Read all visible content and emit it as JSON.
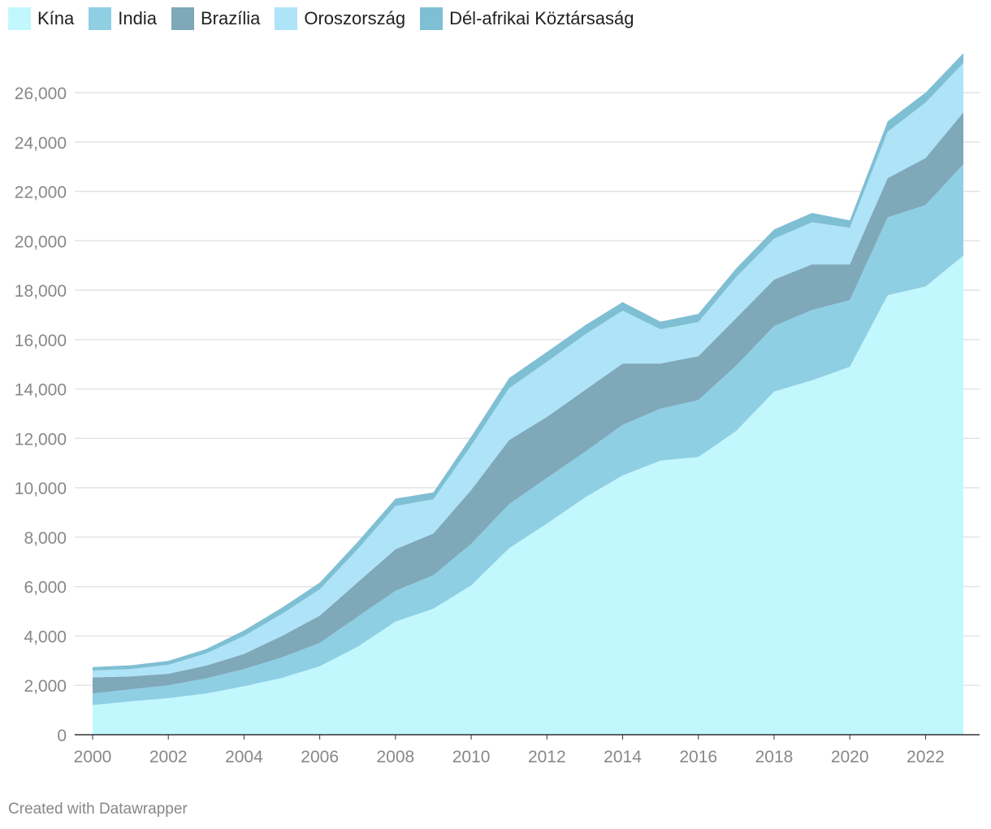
{
  "footer": {
    "credit": "Created with Datawrapper"
  },
  "chart_data": {
    "type": "area",
    "stacked": true,
    "title": "",
    "xlabel": "",
    "ylabel": "",
    "x": [
      2000,
      2001,
      2002,
      2003,
      2004,
      2005,
      2006,
      2007,
      2008,
      2009,
      2010,
      2011,
      2012,
      2013,
      2014,
      2015,
      2016,
      2017,
      2018,
      2019,
      2020,
      2021,
      2022,
      2023
    ],
    "xticks": [
      "2000",
      "2002",
      "2004",
      "2006",
      "2008",
      "2010",
      "2012",
      "2014",
      "2016",
      "2018",
      "2020",
      "2022"
    ],
    "yticks": [
      "0",
      "2,000",
      "4,000",
      "6,000",
      "8,000",
      "10,000",
      "12,000",
      "14,000",
      "16,000",
      "18,000",
      "20,000",
      "22,000",
      "24,000",
      "26,000"
    ],
    "ylim": [
      0,
      28000
    ],
    "grid": true,
    "legend_position": "top-left",
    "series": [
      {
        "name": "Kína",
        "color": "#c2f7fd",
        "values": [
          1200,
          1350,
          1480,
          1670,
          1960,
          2300,
          2770,
          3560,
          4580,
          5100,
          6050,
          7550,
          8550,
          9600,
          10500,
          11100,
          11250,
          12300,
          13900,
          14350,
          14900,
          17800,
          18150,
          19400
        ]
      },
      {
        "name": "India",
        "color": "#8ecfe4",
        "values": [
          470,
          490,
          520,
          610,
          700,
          830,
          950,
          1220,
          1250,
          1360,
          1680,
          1790,
          1850,
          1850,
          2050,
          2100,
          2300,
          2650,
          2650,
          2850,
          2700,
          3150,
          3300,
          3700
        ]
      },
      {
        "name": "Brazília",
        "color": "#7fa8b9",
        "values": [
          650,
          520,
          470,
          520,
          610,
          870,
          1100,
          1390,
          1680,
          1690,
          2180,
          2590,
          2470,
          2500,
          2480,
          1830,
          1780,
          1920,
          1880,
          1850,
          1450,
          1590,
          1900,
          2100
        ]
      },
      {
        "name": "Oroszország",
        "color": "#aee3f8",
        "values": [
          280,
          300,
          360,
          490,
          730,
          890,
          1070,
          1340,
          1750,
          1380,
          1800,
          2100,
          2230,
          2250,
          2140,
          1390,
          1380,
          1660,
          1660,
          1700,
          1480,
          1880,
          2250,
          2000
        ]
      },
      {
        "name": "Dél-afrikai Köztársaság",
        "color": "#7fbfd3",
        "values": [
          140,
          150,
          160,
          180,
          220,
          250,
          270,
          300,
          300,
          280,
          360,
          410,
          400,
          370,
          350,
          310,
          330,
          350,
          370,
          380,
          300,
          420,
          400,
          400
        ]
      }
    ]
  }
}
